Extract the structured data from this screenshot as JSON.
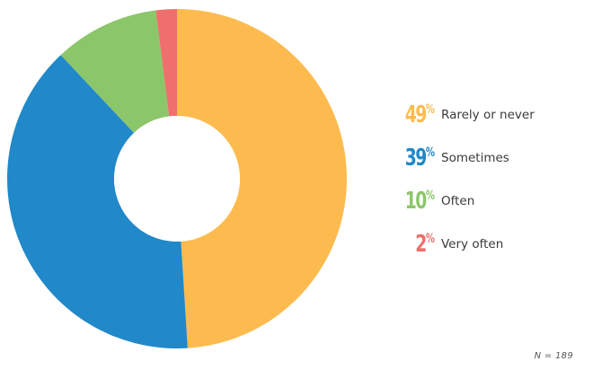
{
  "chart_data": {
    "type": "pie",
    "donut": true,
    "slices": [
      {
        "label": "Rarely or never",
        "value": 49,
        "display": "49",
        "color": "#FDBB4F"
      },
      {
        "label": "Sometimes",
        "value": 39,
        "display": "39",
        "color": "#2188C9"
      },
      {
        "label": "Often",
        "value": 10,
        "display": "10",
        "color": "#8CC66A"
      },
      {
        "label": "Very often",
        "value": 2,
        "display": "2",
        "color": "#EF6F6C"
      }
    ],
    "percent_sign": "%",
    "legend_placement": "right",
    "note": "N = 189"
  }
}
